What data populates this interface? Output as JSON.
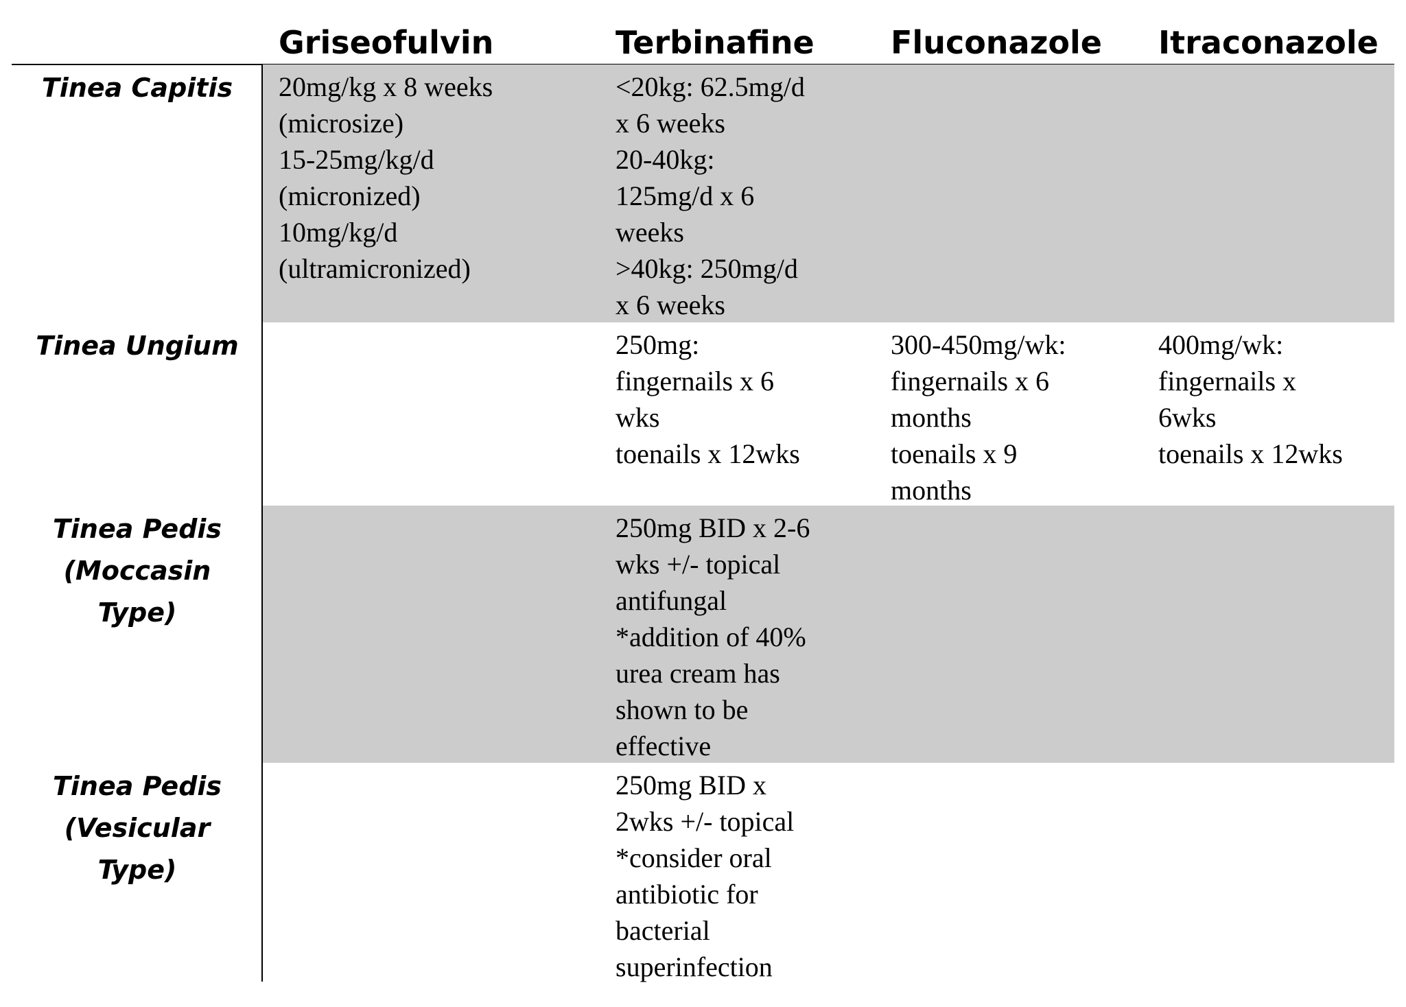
{
  "table": {
    "columns": [
      "Griseofulvin",
      "Terbinafine",
      "Fluconazole",
      "Itraconazole"
    ],
    "rows": [
      {
        "label": [
          "Tinea Capitis"
        ],
        "cells": [
          [
            "20mg/kg x 8 weeks",
            "(microsize)",
            "15-25mg/kg/d",
            "(micronized)",
            "10mg/kg/d",
            "(ultramicronized)"
          ],
          [
            "<20kg: 62.5mg/d",
            "x 6 weeks",
            "20-40kg:",
            "125mg/d x 6",
            "weeks",
            ">40kg: 250mg/d",
            "x 6 weeks"
          ],
          [],
          []
        ]
      },
      {
        "label": [
          "Tinea Ungium"
        ],
        "cells": [
          [],
          [
            "250mg:",
            "fingernails x 6",
            "wks",
            "toenails x 12wks"
          ],
          [
            "300-450mg/wk:",
            "fingernails x 6",
            "months",
            "toenails x 9",
            "months"
          ],
          [
            "400mg/wk:",
            "fingernails x",
            "6wks",
            "toenails x 12wks"
          ]
        ]
      },
      {
        "label": [
          "Tinea Pedis",
          "(Moccasin",
          "Type)"
        ],
        "cells": [
          [],
          [
            "250mg BID x 2-6",
            "wks +/- topical",
            "antifungal",
            "*addition of 40%",
            "urea cream has",
            "shown to be",
            "effective"
          ],
          [],
          []
        ]
      },
      {
        "label": [
          "Tinea Pedis",
          "(Vesicular",
          "Type)"
        ],
        "cells": [
          [],
          [
            "250mg BID x",
            "2wks +/- topical",
            "*consider oral",
            "antibiotic for",
            "bacterial",
            "superinfection"
          ],
          [],
          []
        ]
      }
    ]
  }
}
